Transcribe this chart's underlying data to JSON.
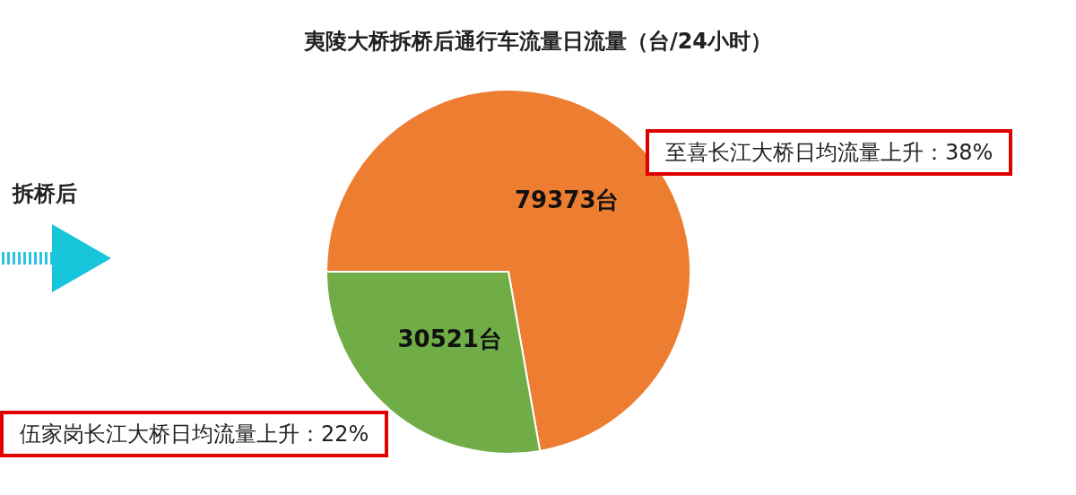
{
  "chart_data": {
    "type": "pie",
    "title": "夷陵大桥拆桥后通行车流量日流量（台/24小时）",
    "categories": [
      null,
      null
    ],
    "values": [
      79373,
      30521
    ],
    "colors": [
      "#ed7d31",
      "#70ad47"
    ],
    "value_labels": [
      "79373台",
      "30521台"
    ],
    "annotations": [
      "至喜长江大桥日均流量上升：38%",
      "伍家岗长江大桥日均流量上升：22%",
      "拆桥后"
    ]
  }
}
